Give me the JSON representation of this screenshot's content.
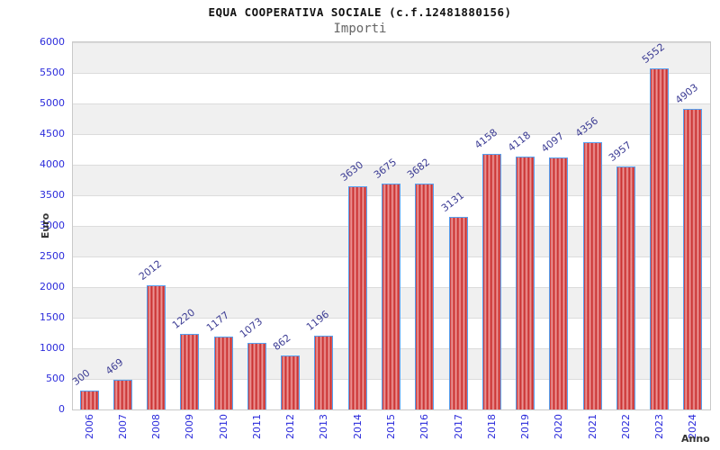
{
  "chart_data": {
    "type": "bar",
    "title": "EQUA COOPERATIVA SOCIALE (c.f.12481880156)",
    "subtitle": "Importi",
    "xlabel": "Anno",
    "ylabel": "Euro",
    "categories": [
      "2006",
      "2007",
      "2008",
      "2009",
      "2010",
      "2011",
      "2012",
      "2013",
      "2014",
      "2015",
      "2016",
      "2017",
      "2018",
      "2019",
      "2020",
      "2021",
      "2022",
      "2023",
      "2024"
    ],
    "values": [
      300,
      469,
      2012,
      1220,
      1177,
      1073,
      862,
      1196,
      3630,
      3675,
      3682,
      3131,
      4158,
      4118,
      4097,
      4356,
      3957,
      5552,
      4903
    ],
    "ylim": [
      0,
      6000
    ],
    "ytick_step": 500,
    "grid": true,
    "legend": "none",
    "band_style": "alternating gray/white horizontal bands",
    "colors": {
      "bar_dark": "#c62525",
      "bar_light": "#f0a0a0",
      "bar_border": "#55a0f0",
      "tick_label": "#2b2bdb",
      "value_label": "#3c3c94",
      "band_gray": "#f0f0f0",
      "grid_line": "#dcdcdc",
      "plot_border": "#c9c9c9",
      "axis_name": "#333333"
    }
  }
}
